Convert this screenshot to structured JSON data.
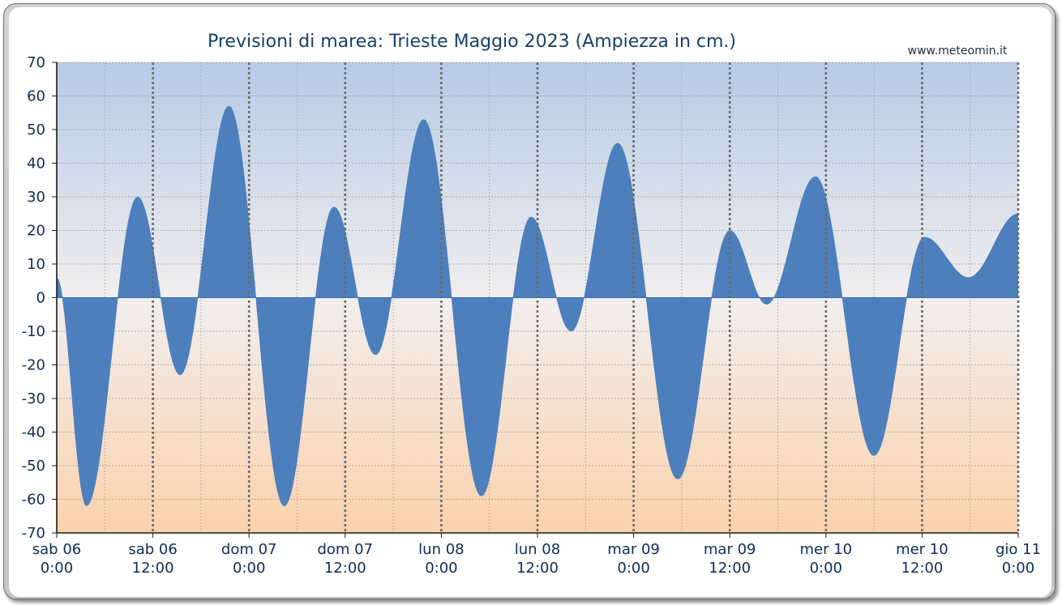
{
  "chart_data": {
    "type": "area",
    "title": "Previsioni di marea: Trieste Maggio 2023 (Ampiezza in cm.)",
    "source": "www.meteomin.it",
    "xlabel": "",
    "ylabel": "",
    "ylim": [
      -70,
      70
    ],
    "yticks": [
      70,
      60,
      50,
      40,
      30,
      20,
      10,
      0,
      -10,
      -20,
      -30,
      -40,
      -50,
      -60,
      -70
    ],
    "xlim_hours": [
      0,
      120
    ],
    "x_unit": "hours from sab 06 0:00",
    "grid": true,
    "fill_color": "#4d7fbd",
    "background_top": "#b6cbe6",
    "background_mid": "#f1eeee",
    "background_bottom": "#fbd2ac",
    "xticks": [
      {
        "day": "sab",
        "date": "06",
        "time": "0:00",
        "hour": 0
      },
      {
        "day": "sab",
        "date": "06",
        "time": "12:00",
        "hour": 12
      },
      {
        "day": "dom",
        "date": "07",
        "time": "0:00",
        "hour": 24
      },
      {
        "day": "dom",
        "date": "07",
        "time": "12:00",
        "hour": 36
      },
      {
        "day": "lun",
        "date": "08",
        "time": "0:00",
        "hour": 48
      },
      {
        "day": "lun",
        "date": "08",
        "time": "12:00",
        "hour": 60
      },
      {
        "day": "mar",
        "date": "09",
        "time": "0:00",
        "hour": 72
      },
      {
        "day": "mar",
        "date": "09",
        "time": "12:00",
        "hour": 84
      },
      {
        "day": "mer",
        "date": "10",
        "time": "0:00",
        "hour": 96
      },
      {
        "day": "mer",
        "date": "10",
        "time": "12:00",
        "hour": 108
      },
      {
        "day": "gio",
        "date": "11",
        "time": "0:00",
        "hour": 120
      }
    ],
    "series": [
      {
        "values": [
          {
            "hour": 0,
            "cm": 6
          },
          {
            "hour": 3.7,
            "cm": -62
          },
          {
            "hour": 10.1,
            "cm": 30
          },
          {
            "hour": 15.4,
            "cm": -23
          },
          {
            "hour": 21.5,
            "cm": 57
          },
          {
            "hour": 28.4,
            "cm": -62
          },
          {
            "hour": 34.6,
            "cm": 27
          },
          {
            "hour": 39.8,
            "cm": -17
          },
          {
            "hour": 45.8,
            "cm": 53
          },
          {
            "hour": 53.0,
            "cm": -59
          },
          {
            "hour": 59.2,
            "cm": 24
          },
          {
            "hour": 64.2,
            "cm": -10
          },
          {
            "hour": 70.0,
            "cm": 46
          },
          {
            "hour": 77.5,
            "cm": -54
          },
          {
            "hour": 84.0,
            "cm": 20
          },
          {
            "hour": 88.6,
            "cm": -2
          },
          {
            "hour": 94.7,
            "cm": 36
          },
          {
            "hour": 102.0,
            "cm": -47
          },
          {
            "hour": 108.3,
            "cm": 18
          },
          {
            "hour": 113.8,
            "cm": 6
          },
          {
            "hour": 120,
            "cm": 25
          }
        ]
      }
    ]
  }
}
